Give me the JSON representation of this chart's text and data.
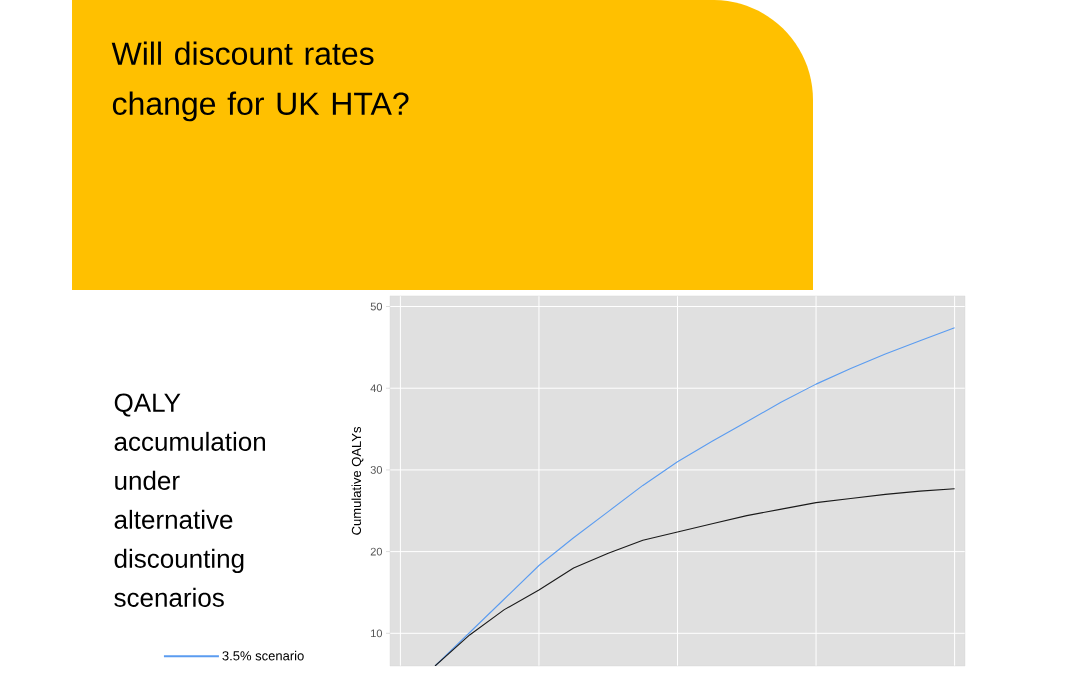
{
  "chart_data": {
    "type": "line",
    "title": "Will discount rates change for UK HTA?",
    "subtitle": "QALY accumulation under alternative discounting scenarios",
    "ylabel": "Cumulative QALYs",
    "categories": [
      null,
      null,
      null,
      null,
      null,
      null,
      null,
      null,
      null,
      null,
      null,
      null,
      null,
      null,
      null,
      null,
      null
    ],
    "ylim": [
      6,
      51.3
    ],
    "yticks": [
      10,
      20,
      30,
      40,
      50
    ],
    "grid": true,
    "legend": "bottom left",
    "tick_labels": "y",
    "series": [
      {
        "name": "3.5% scenario",
        "color": "#5b9cf0",
        "values": [
          null,
          6.0,
          10.1,
          14.2,
          18.3,
          21.7,
          24.9,
          28.1,
          31.0,
          33.5,
          35.9,
          38.3,
          40.5,
          42.4,
          44.2,
          45.8,
          47.4
        ]
      },
      {
        "color": "#1a1a1a",
        "values": [
          null,
          6.0,
          9.8,
          12.9,
          15.3,
          18.0,
          19.8,
          21.4,
          22.4,
          23.4,
          24.4,
          25.2,
          26.0,
          26.5,
          27.0,
          27.4,
          27.7
        ]
      }
    ]
  }
}
